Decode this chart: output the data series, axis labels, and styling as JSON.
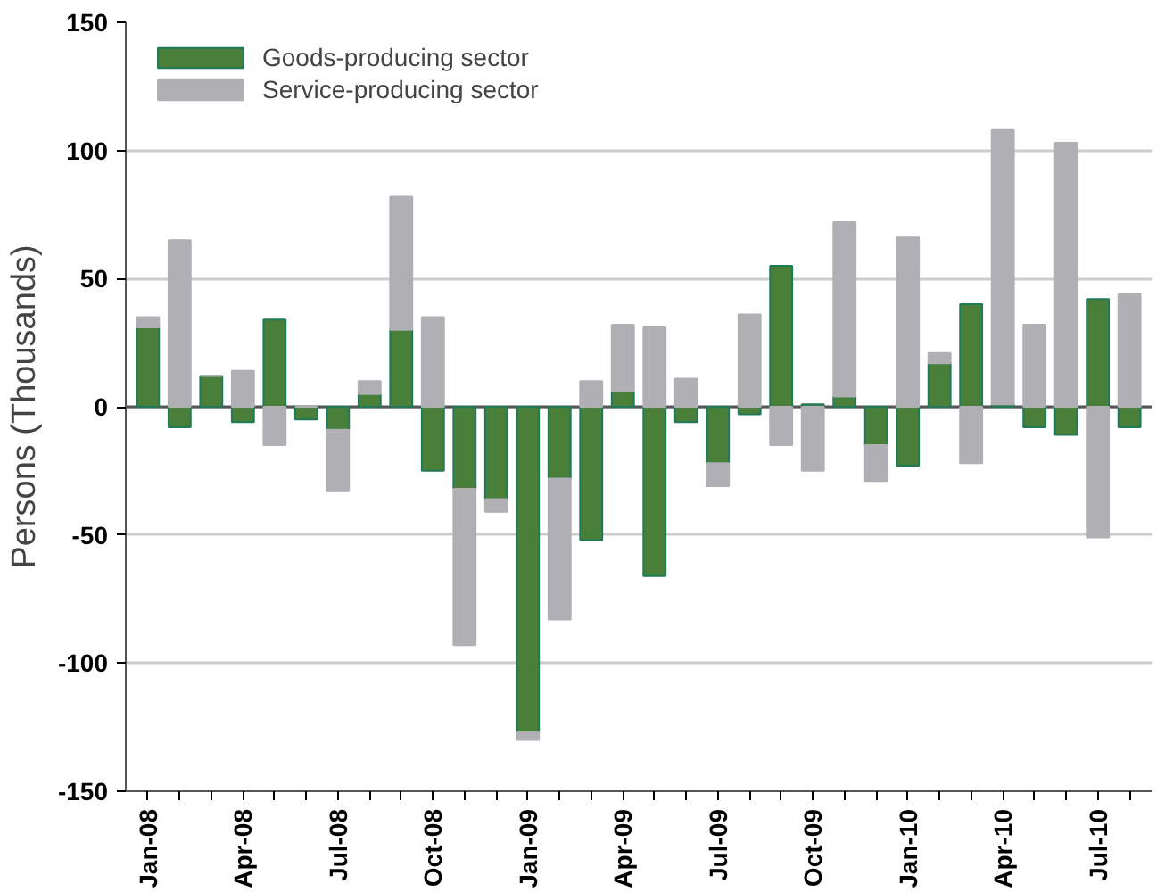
{
  "chart_data": {
    "type": "bar",
    "stacked": true,
    "ylabel": "Persons (Thousands)",
    "categories": [
      "Jan-08",
      null,
      null,
      "Apr-08",
      null,
      null,
      "Jul-08",
      null,
      null,
      "Oct-08",
      null,
      null,
      "Jan-09",
      null,
      null,
      "Apr-09",
      null,
      null,
      "Jul-09",
      null,
      null,
      "Oct-09",
      null,
      null,
      "Jan-10",
      null,
      null,
      "Apr-10",
      null,
      null,
      "Jul-10",
      null
    ],
    "series": [
      {
        "name": "Goods-producing sector",
        "color": "#4a7f3a",
        "values": [
          31,
          -8,
          12,
          -6,
          34,
          -5,
          -9,
          5,
          30,
          -25,
          -32,
          -36,
          -127,
          -28,
          -52,
          6,
          -66,
          -6,
          -22,
          -3,
          55,
          1,
          4,
          -15,
          -23,
          17,
          40,
          1,
          -8,
          -11,
          42,
          -8
        ]
      },
      {
        "name": "Service-producing sector",
        "color": "#b0b0b4",
        "values": [
          4,
          65,
          0,
          14,
          -15,
          0,
          -24,
          5,
          52,
          35,
          -61,
          -5,
          -3,
          -55,
          10,
          26,
          31,
          11,
          -9,
          36,
          -15,
          -25,
          68,
          -14,
          66,
          4,
          -22,
          107,
          32,
          103,
          -51,
          44
        ]
      }
    ],
    "ylim": [
      -150,
      150
    ],
    "yticks": [
      -150,
      -100,
      -50,
      0,
      50,
      100,
      150
    ],
    "grid": "y",
    "legend": "top left"
  }
}
